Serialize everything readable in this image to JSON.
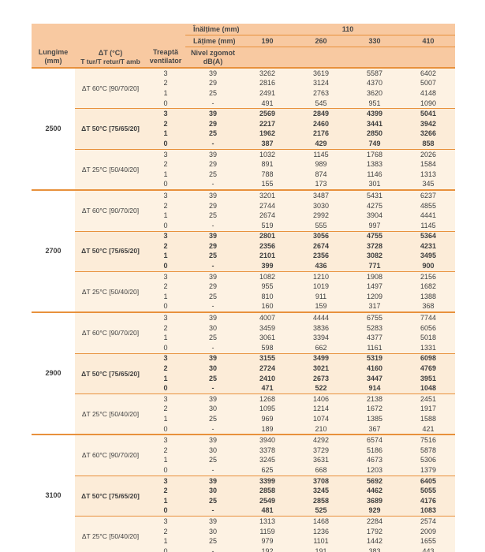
{
  "colors": {
    "header_bg": "#f8c9a1",
    "row_bg": "#fdf2e3",
    "bold_row_bg": "#fcecd8",
    "rule_orange": "#e8913c",
    "text": "#3e3e3e"
  },
  "header": {
    "row1_label": "Înălțime (mm)",
    "row1_value": "110",
    "row2_label": "Lățime (mm)",
    "widths": [
      "190",
      "260",
      "330",
      "410"
    ],
    "cols": {
      "lungime1": "Lungime",
      "lungime2": "(mm)",
      "dt1": "ΔT (°C)",
      "dt2": "T tur/T retur/T amb",
      "treapta1": "Treaptă",
      "treapta2": "ventilator",
      "zgomot1": "Nivel zgomot",
      "zgomot2": "dB(A)"
    }
  },
  "groups": [
    {
      "lungime": "2500",
      "blocks": [
        {
          "dt": "ΔT 60°C [90/70/20]",
          "bold": false,
          "rows": [
            [
              "3",
              "39",
              "3262",
              "3619",
              "5587",
              "6402"
            ],
            [
              "2",
              "29",
              "2816",
              "3124",
              "4370",
              "5007"
            ],
            [
              "1",
              "25",
              "2491",
              "2763",
              "3620",
              "4148"
            ],
            [
              "0",
              "-",
              "491",
              "545",
              "951",
              "1090"
            ]
          ]
        },
        {
          "dt": "ΔT 50°C [75/65/20]",
          "bold": true,
          "rows": [
            [
              "3",
              "39",
              "2569",
              "2849",
              "4399",
              "5041"
            ],
            [
              "2",
              "29",
              "2217",
              "2460",
              "3441",
              "3942"
            ],
            [
              "1",
              "25",
              "1962",
              "2176",
              "2850",
              "3266"
            ],
            [
              "0",
              "-",
              "387",
              "429",
              "749",
              "858"
            ]
          ]
        },
        {
          "dt": "ΔT 25°C [50/40/20]",
          "bold": false,
          "rows": [
            [
              "3",
              "39",
              "1032",
              "1145",
              "1768",
              "2026"
            ],
            [
              "2",
              "29",
              "891",
              "989",
              "1383",
              "1584"
            ],
            [
              "1",
              "25",
              "788",
              "874",
              "1146",
              "1313"
            ],
            [
              "0",
              "-",
              "155",
              "173",
              "301",
              "345"
            ]
          ]
        }
      ]
    },
    {
      "lungime": "2700",
      "blocks": [
        {
          "dt": "ΔT 60°C [90/70/20]",
          "bold": false,
          "rows": [
            [
              "3",
              "39",
              "3201",
              "3487",
              "5431",
              "6237"
            ],
            [
              "2",
              "29",
              "2744",
              "3030",
              "4275",
              "4855"
            ],
            [
              "1",
              "25",
              "2674",
              "2992",
              "3904",
              "4441"
            ],
            [
              "0",
              "-",
              "519",
              "555",
              "997",
              "1145"
            ]
          ]
        },
        {
          "dt": "ΔT 50°C [75/65/20]",
          "bold": true,
          "rows": [
            [
              "3",
              "39",
              "2801",
              "3056",
              "4755",
              "5364"
            ],
            [
              "2",
              "29",
              "2356",
              "2674",
              "3728",
              "4231"
            ],
            [
              "1",
              "25",
              "2101",
              "2356",
              "3082",
              "3495"
            ],
            [
              "0",
              "-",
              "399",
              "436",
              "771",
              "900"
            ]
          ]
        },
        {
          "dt": "ΔT 25°C [50/40/20]",
          "bold": false,
          "rows": [
            [
              "3",
              "39",
              "1082",
              "1210",
              "1908",
              "2156"
            ],
            [
              "2",
              "29",
              "955",
              "1019",
              "1497",
              "1682"
            ],
            [
              "1",
              "25",
              "810",
              "911",
              "1209",
              "1388"
            ],
            [
              "0",
              "-",
              "160",
              "159",
              "317",
              "368"
            ]
          ]
        }
      ]
    },
    {
      "lungime": "2900",
      "blocks": [
        {
          "dt": "ΔT 60°C [90/70/20]",
          "bold": false,
          "rows": [
            [
              "3",
              "39",
              "4007",
              "4444",
              "6755",
              "7744"
            ],
            [
              "2",
              "30",
              "3459",
              "3836",
              "5283",
              "6056"
            ],
            [
              "1",
              "25",
              "3061",
              "3394",
              "4377",
              "5018"
            ],
            [
              "0",
              "-",
              "598",
              "662",
              "1161",
              "1331"
            ]
          ]
        },
        {
          "dt": "ΔT 50°C [75/65/20]",
          "bold": true,
          "rows": [
            [
              "3",
              "39",
              "3155",
              "3499",
              "5319",
              "6098"
            ],
            [
              "2",
              "30",
              "2724",
              "3021",
              "4160",
              "4769"
            ],
            [
              "1",
              "25",
              "2410",
              "2673",
              "3447",
              "3951"
            ],
            [
              "0",
              "-",
              "471",
              "522",
              "914",
              "1048"
            ]
          ]
        },
        {
          "dt": "ΔT 25°C [50/40/20]",
          "bold": false,
          "rows": [
            [
              "3",
              "39",
              "1268",
              "1406",
              "2138",
              "2451"
            ],
            [
              "2",
              "30",
              "1095",
              "1214",
              "1672",
              "1917"
            ],
            [
              "1",
              "25",
              "969",
              "1074",
              "1385",
              "1588"
            ],
            [
              "0",
              "-",
              "189",
              "210",
              "367",
              "421"
            ]
          ]
        }
      ]
    },
    {
      "lungime": "3100",
      "blocks": [
        {
          "dt": "ΔT 60°C [90/70/20]",
          "bold": false,
          "rows": [
            [
              "3",
              "39",
              "3940",
              "4292",
              "6574",
              "7516"
            ],
            [
              "2",
              "30",
              "3378",
              "3729",
              "5186",
              "5878"
            ],
            [
              "1",
              "25",
              "3245",
              "3631",
              "4673",
              "5306"
            ],
            [
              "0",
              "-",
              "625",
              "668",
              "1203",
              "1379"
            ]
          ]
        },
        {
          "dt": "ΔT 50°C [75/65/20]",
          "bold": true,
          "rows": [
            [
              "3",
              "39",
              "3399",
              "3708",
              "5692",
              "6405"
            ],
            [
              "2",
              "30",
              "2858",
              "3245",
              "4462",
              "5055"
            ],
            [
              "1",
              "25",
              "2549",
              "2858",
              "3689",
              "4176"
            ],
            [
              "0",
              "-",
              "481",
              "525",
              "929",
              "1083"
            ]
          ]
        },
        {
          "dt": "ΔT 25°C [50/40/20]",
          "bold": false,
          "rows": [
            [
              "3",
              "39",
              "1313",
              "1468",
              "2284",
              "2574"
            ],
            [
              "2",
              "30",
              "1159",
              "1236",
              "1792",
              "2009"
            ],
            [
              "1",
              "25",
              "979",
              "1101",
              "1442",
              "1655"
            ],
            [
              "0",
              "-",
              "192",
              "191",
              "383",
              "443"
            ]
          ]
        }
      ]
    }
  ]
}
